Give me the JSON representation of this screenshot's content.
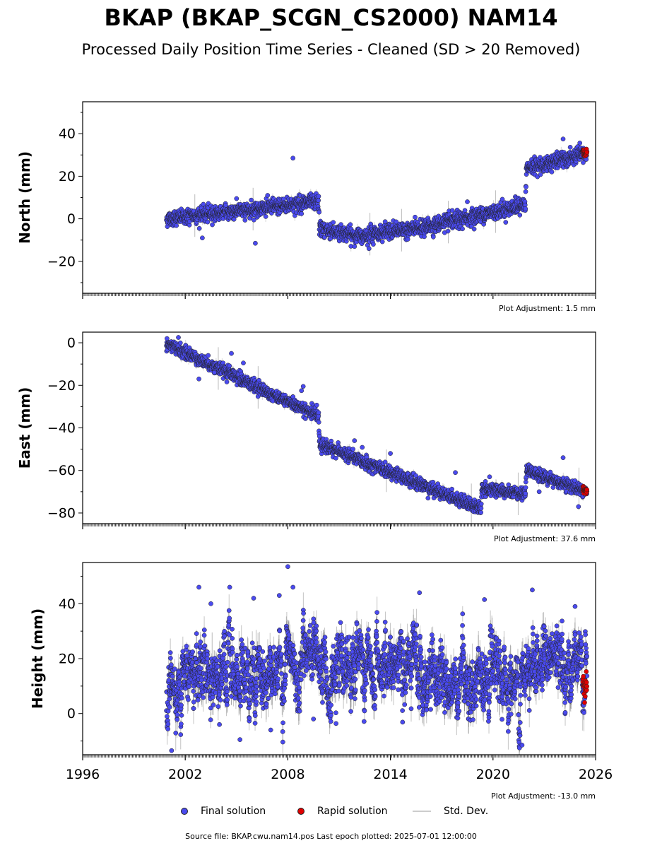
{
  "title": "BKAP (BKAP_SCGN_CS2000) NAM14",
  "subtitle": "Processed Daily Position Time Series - Cleaned (SD > 20 Removed)",
  "footer": "Source file: BKAP.cwu.nam14.pos  Last epoch plotted: 2025-07-01 12:00:00",
  "legend": {
    "final": "Final solution",
    "rapid": "Rapid solution",
    "std": "Std. Dev."
  },
  "colors": {
    "final": "#4a4aef",
    "rapid": "#e00000",
    "std": "#bbbbbb",
    "edge": "#222222"
  },
  "chart_data": [
    {
      "type": "scatter",
      "ylabel": "North (mm)",
      "ylim": [
        -35,
        55
      ],
      "yticks": [
        -20,
        0,
        20,
        40
      ],
      "xlim": [
        1996,
        2026
      ],
      "xticks": [],
      "adjustment": "Plot Adjustment: 1.5 mm",
      "series": [
        {
          "trend": [
            [
              2000.9,
              0
            ],
            [
              2009.8,
              8.0
            ],
            [
              2009.85,
              -4.5
            ],
            [
              2012.0,
              -8.0
            ],
            [
              2016.0,
              -4.0
            ],
            [
              2021.9,
              6.5
            ],
            [
              2021.95,
              23.5
            ],
            [
              2025.5,
              30.5
            ]
          ],
          "noise": 1.8,
          "outliers": [
            [
              2005.0,
              9.5
            ],
            [
              2006.1,
              -11.5
            ],
            [
              2008.3,
              28.5
            ],
            [
              2011.9,
              -13.0
            ],
            [
              2013.0,
              -12.0
            ],
            [
              2018.5,
              8.0
            ],
            [
              2024.1,
              37.5
            ],
            [
              2003.0,
              -9.0
            ]
          ]
        }
      ],
      "rapid": {
        "x": [
          2025.25,
          2025.5
        ],
        "y": [
          31.5,
          30.5
        ],
        "noise": 1.0
      }
    },
    {
      "type": "scatter",
      "ylabel": "East (mm)",
      "ylim": [
        -85,
        5
      ],
      "yticks": [
        -80,
        -60,
        -40,
        -20,
        0
      ],
      "xlim": [
        1996,
        2026
      ],
      "xticks": [],
      "adjustment": "Plot Adjustment: 37.6 mm",
      "series": [
        {
          "trend": [
            [
              2000.9,
              -0.5
            ],
            [
              2009.8,
              -34.5
            ],
            [
              2009.85,
              -47.5
            ],
            [
              2019.3,
              -78.0
            ],
            [
              2019.35,
              -68.5
            ],
            [
              2021.9,
              -71.5
            ],
            [
              2021.95,
              -60.0
            ],
            [
              2025.5,
              -70.0
            ]
          ],
          "noise": 1.5,
          "outliers": [
            [
              2001.6,
              2.5
            ],
            [
              2003.7,
              -14.0
            ],
            [
              2004.7,
              -5.0
            ],
            [
              2005.4,
              -9.5
            ],
            [
              2008.9,
              -20.5
            ],
            [
              2008.8,
              -22.5
            ],
            [
              2002.8,
              -17.0
            ],
            [
              2011.9,
              -46.0
            ],
            [
              2014.0,
              -52.0
            ],
            [
              2017.8,
              -61.0
            ],
            [
              2019.8,
              -63.0
            ],
            [
              2024.1,
              -54.0
            ],
            [
              2025.0,
              -77.0
            ],
            [
              2022.7,
              -70.0
            ],
            [
              2016.2,
              -73.0
            ]
          ]
        }
      ],
      "rapid": {
        "x": [
          2025.25,
          2025.5
        ],
        "y": [
          -69.5,
          -69.0
        ],
        "noise": 0.8
      }
    },
    {
      "type": "scatter",
      "ylabel": "Height (mm)",
      "ylim": [
        -15,
        55
      ],
      "yticks": [
        0,
        20,
        40
      ],
      "xlim": [
        1996,
        2026
      ],
      "xticks": [
        1996,
        2002,
        2008,
        2014,
        2020,
        2026
      ],
      "adjustment": "Plot Adjustment: -13.0 mm",
      "series": [
        {
          "trend": [
            [
              2000.9,
              8.0
            ],
            [
              2002.0,
              14.0
            ],
            [
              2005.0,
              15.0
            ],
            [
              2010.0,
              17.0
            ],
            [
              2015.0,
              16.0
            ],
            [
              2019.0,
              12.0
            ],
            [
              2021.9,
              10.0
            ],
            [
              2022.0,
              22.0
            ],
            [
              2025.5,
              14.0
            ]
          ],
          "noise": 7.0,
          "outliers": [
            [
              2002.8,
              46.0
            ],
            [
              2003.5,
              40.0
            ],
            [
              2004.6,
              46.0
            ],
            [
              2006.0,
              42.0
            ],
            [
              2007.5,
              43.0
            ],
            [
              2008.0,
              53.5
            ],
            [
              2008.3,
              46.0
            ],
            [
              2015.7,
              44.0
            ],
            [
              2019.5,
              41.5
            ],
            [
              2022.3,
              45.0
            ],
            [
              2024.8,
              39.0
            ],
            [
              2001.2,
              -13.5
            ],
            [
              2005.2,
              -9.5
            ],
            [
              2009.5,
              -2.0
            ],
            [
              2021.7,
              -11.5
            ],
            [
              2007.0,
              -6.0
            ],
            [
              2004.0,
              -4.0
            ]
          ]
        }
      ],
      "rapid": {
        "x": [
          2025.25,
          2025.5
        ],
        "y": [
          10.0,
          10.0
        ],
        "noise": 3.0
      }
    }
  ]
}
